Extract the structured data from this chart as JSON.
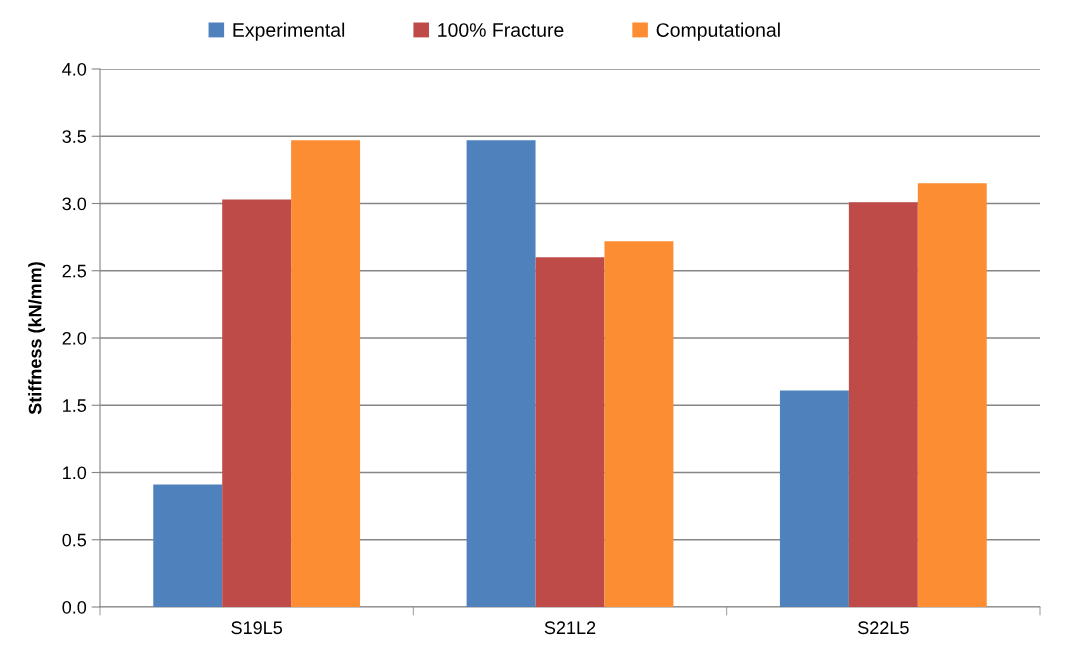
{
  "chart_data": {
    "type": "bar",
    "ylabel": "Stiffness (kN/mm)",
    "categories": [
      "S19L5",
      "S21L2",
      "S22L5"
    ],
    "series": [
      {
        "name": "Experimental",
        "color": "#4f81bd",
        "values": [
          0.91,
          3.47,
          1.61
        ]
      },
      {
        "name": "100% Fracture",
        "color": "#be4b48",
        "values": [
          3.03,
          2.6,
          3.01
        ]
      },
      {
        "name": "Computational",
        "color": "#fd8d33",
        "values": [
          3.47,
          2.72,
          3.15
        ]
      }
    ],
    "ylim": [
      0,
      4.0
    ],
    "yticks": [
      {
        "value": 0,
        "label": "0.0"
      },
      {
        "value": 0.5,
        "label": "0.5"
      },
      {
        "value": 1,
        "label": "1.0"
      },
      {
        "value": 1.5,
        "label": "1.5"
      },
      {
        "value": 2,
        "label": "2.0"
      },
      {
        "value": 2.5,
        "label": "2.5"
      },
      {
        "value": 3,
        "label": "3.0"
      },
      {
        "value": 3.5,
        "label": "3.5"
      },
      {
        "value": 4,
        "label": "4.0"
      }
    ],
    "grid": "y",
    "legend": "top"
  }
}
